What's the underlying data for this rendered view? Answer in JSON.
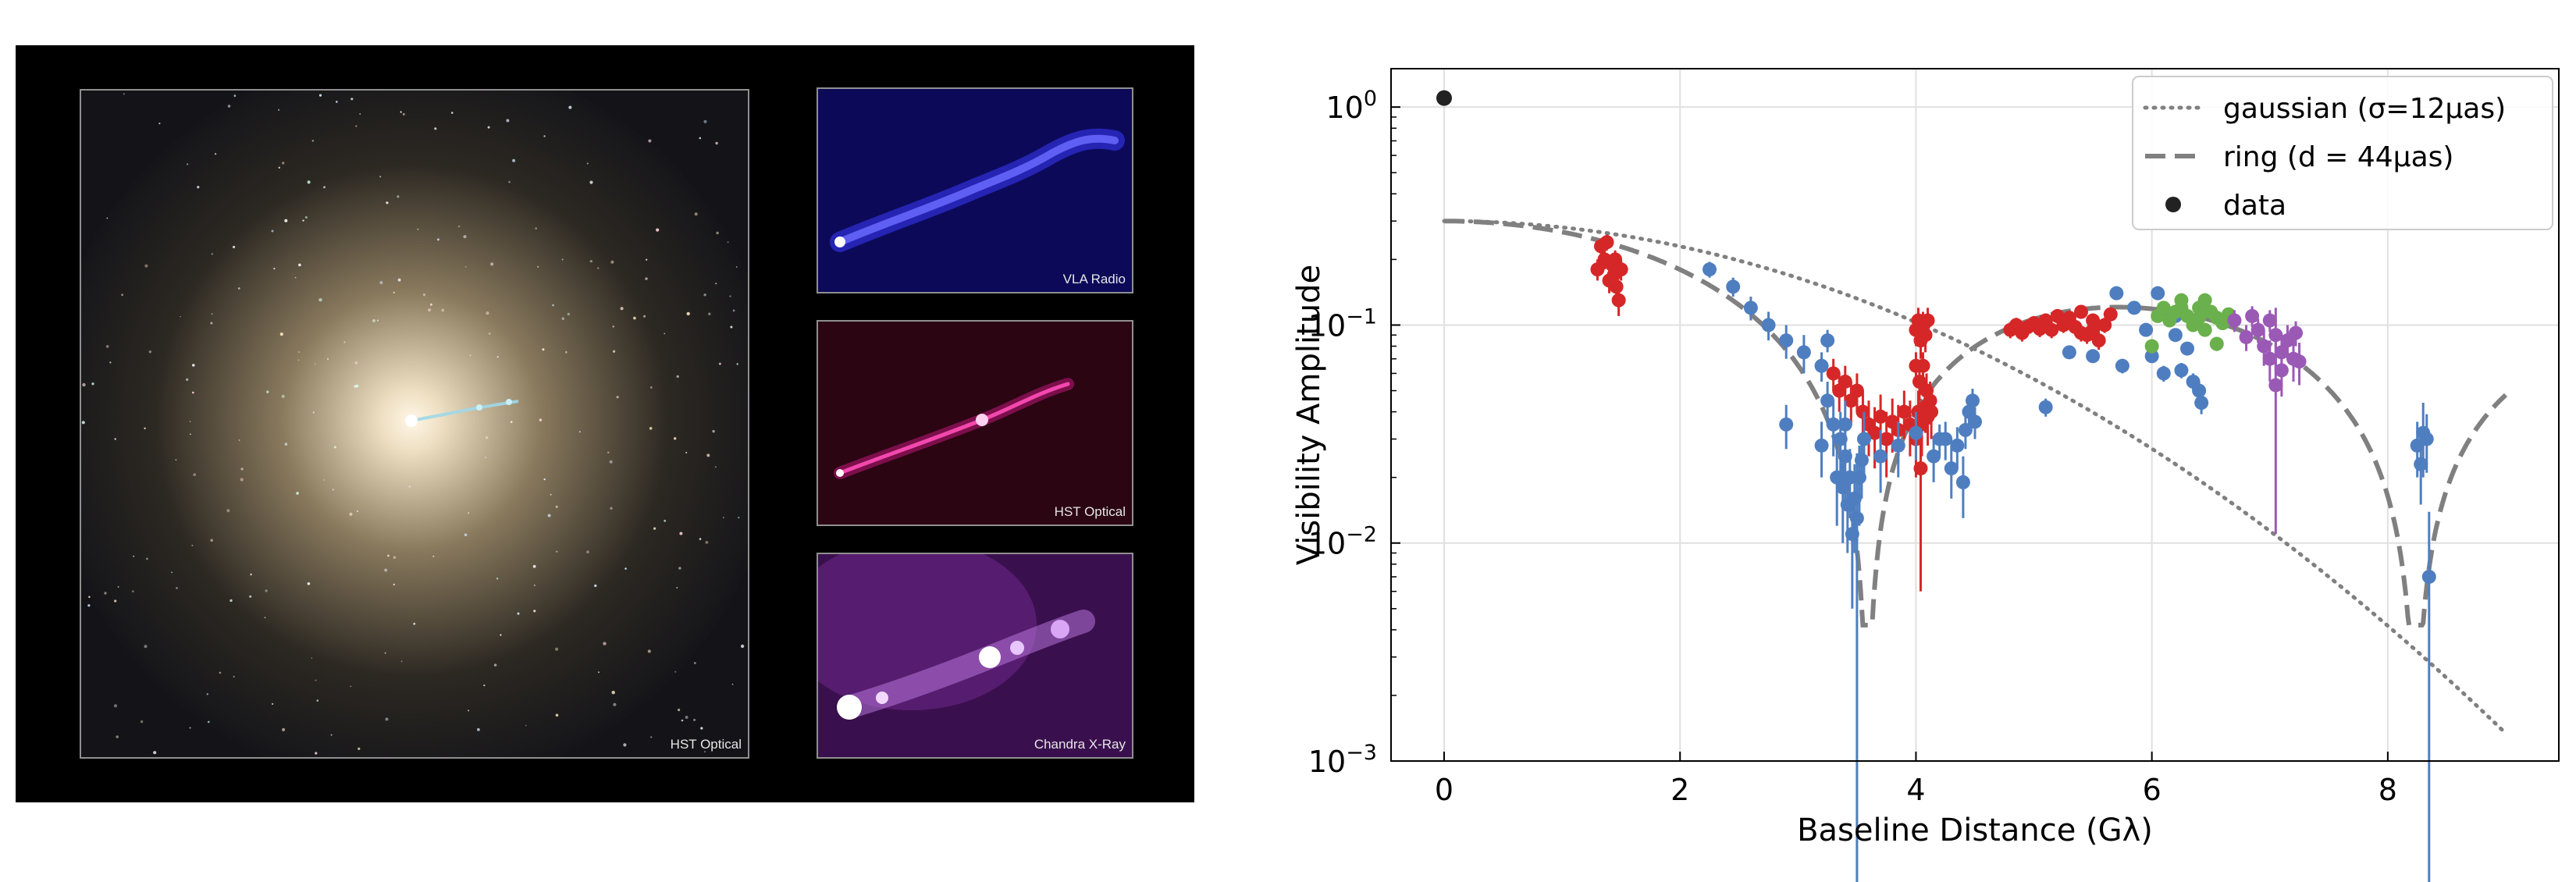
{
  "images": {
    "main_label": "HST Optical",
    "radio_label": "VLA Radio",
    "optical_label": "HST Optical",
    "xray_label": "Chandra X-Ray"
  },
  "chart_data": {
    "type": "scatter",
    "xlabel": "Baseline Distance (Gλ)",
    "ylabel": "Visibility Amplitude",
    "xlim": [
      -0.45,
      9.45
    ],
    "ylim": [
      0.001,
      1.5
    ],
    "yscale": "log",
    "grid": true,
    "legend_position": "top-right",
    "xticks": [
      0,
      2,
      4,
      6,
      8
    ],
    "yticks": [
      {
        "value": 1,
        "base": "10",
        "exp": "0"
      },
      {
        "value": 0.1,
        "base": "10",
        "exp": "−1"
      },
      {
        "value": 0.01,
        "base": "10",
        "exp": "−2"
      },
      {
        "value": 0.001,
        "base": "10",
        "exp": "−3"
      }
    ],
    "legend": [
      {
        "label": "gaussian (σ=12μas)",
        "style": "dotted"
      },
      {
        "label": "ring (d = 44μas)",
        "style": "dashed"
      },
      {
        "label": "data",
        "style": "marker"
      }
    ],
    "models": {
      "gaussian": {
        "amp0": 0.3,
        "sigma_uas": 12,
        "color": "#808080"
      },
      "ring": {
        "amp0": 0.3,
        "d_uas": 44,
        "color": "#808080"
      }
    },
    "zero_point": {
      "x": 0.0,
      "y": 1.1,
      "color": "#222222"
    },
    "point_sets": [
      {
        "color": "#d62728",
        "points": [
          [
            1.3,
            0.18,
            0.02
          ],
          [
            1.33,
            0.23,
            0.02
          ],
          [
            1.36,
            0.2,
            0.02
          ],
          [
            1.38,
            0.24,
            0.02
          ],
          [
            1.4,
            0.16,
            0.02
          ],
          [
            1.42,
            0.19,
            0.02
          ],
          [
            1.44,
            0.17,
            0.02
          ],
          [
            1.46,
            0.15,
            0.02
          ],
          [
            1.48,
            0.13,
            0.02
          ],
          [
            1.5,
            0.18,
            0.02
          ],
          [
            1.45,
            0.2,
            0.02
          ],
          [
            3.3,
            0.06,
            0.01
          ],
          [
            3.35,
            0.05,
            0.01
          ],
          [
            3.4,
            0.055,
            0.01
          ],
          [
            3.45,
            0.045,
            0.01
          ],
          [
            3.5,
            0.05,
            0.01
          ],
          [
            3.55,
            0.04,
            0.01
          ],
          [
            3.6,
            0.035,
            0.01
          ],
          [
            3.65,
            0.032,
            0.01
          ],
          [
            3.7,
            0.038,
            0.01
          ],
          [
            3.75,
            0.03,
            0.01
          ],
          [
            3.8,
            0.036,
            0.01
          ],
          [
            3.85,
            0.033,
            0.01
          ],
          [
            3.9,
            0.04,
            0.01
          ],
          [
            3.95,
            0.035,
            0.01
          ],
          [
            4.0,
            0.095,
            0.015
          ],
          [
            4.02,
            0.105,
            0.015
          ],
          [
            4.04,
            0.085,
            0.015
          ],
          [
            4.06,
            0.1,
            0.015
          ],
          [
            4.08,
            0.09,
            0.015
          ],
          [
            4.1,
            0.105,
            0.015
          ],
          [
            4.0,
            0.065,
            0.01
          ],
          [
            4.03,
            0.055,
            0.01
          ],
          [
            4.06,
            0.065,
            0.01
          ],
          [
            4.09,
            0.05,
            0.01
          ],
          [
            4.12,
            0.045,
            0.01
          ],
          [
            4.02,
            0.04,
            0.01
          ],
          [
            4.05,
            0.035,
            0.01
          ],
          [
            4.08,
            0.042,
            0.01
          ],
          [
            4.0,
            0.03,
            0.01
          ],
          [
            4.04,
            0.022,
            0.016
          ],
          [
            4.1,
            0.038,
            0.01
          ],
          [
            4.13,
            0.04,
            0.01
          ],
          [
            4.8,
            0.095,
            0.008
          ],
          [
            4.85,
            0.1,
            0.008
          ],
          [
            4.9,
            0.092,
            0.008
          ],
          [
            4.95,
            0.098,
            0.008
          ],
          [
            5.0,
            0.102,
            0.008
          ],
          [
            5.05,
            0.096,
            0.008
          ],
          [
            5.1,
            0.105,
            0.008
          ],
          [
            5.15,
            0.095,
            0.008
          ],
          [
            5.2,
            0.11,
            0.008
          ],
          [
            5.25,
            0.1,
            0.008
          ],
          [
            5.3,
            0.108,
            0.008
          ],
          [
            5.35,
            0.098,
            0.008
          ],
          [
            5.4,
            0.115,
            0.008
          ],
          [
            5.45,
            0.09,
            0.008
          ],
          [
            5.5,
            0.105,
            0.008
          ],
          [
            5.55,
            0.085,
            0.008
          ],
          [
            5.6,
            0.1,
            0.008
          ],
          [
            5.65,
            0.112,
            0.008
          ],
          [
            5.4,
            0.092,
            0.008
          ],
          [
            5.5,
            0.095,
            0.008
          ]
        ]
      },
      {
        "color": "#4f7ec0",
        "points": [
          [
            2.25,
            0.18,
            0.015
          ],
          [
            2.45,
            0.15,
            0.015
          ],
          [
            2.6,
            0.12,
            0.015
          ],
          [
            2.75,
            0.1,
            0.015
          ],
          [
            2.9,
            0.085,
            0.015
          ],
          [
            3.05,
            0.075,
            0.015
          ],
          [
            3.2,
            0.065,
            0.01
          ],
          [
            3.25,
            0.085,
            0.01
          ],
          [
            2.9,
            0.035,
            0.008
          ],
          [
            3.2,
            0.028,
            0.008
          ],
          [
            3.25,
            0.045,
            0.01
          ],
          [
            3.3,
            0.035,
            0.01
          ],
          [
            3.33,
            0.02,
            0.008
          ],
          [
            3.36,
            0.03,
            0.01
          ],
          [
            3.38,
            0.018,
            0.008
          ],
          [
            3.4,
            0.025,
            0.01
          ],
          [
            3.42,
            0.015,
            0.006
          ],
          [
            3.44,
            0.02,
            0.007
          ],
          [
            3.46,
            0.011,
            0.006
          ],
          [
            3.48,
            0.016,
            0.007
          ],
          [
            3.5,
            0.013,
            0.0128
          ],
          [
            3.52,
            0.02,
            0.008
          ],
          [
            3.54,
            0.024,
            0.008
          ],
          [
            3.56,
            0.03,
            0.01
          ],
          [
            3.4,
            0.035,
            0.01
          ],
          [
            3.7,
            0.025,
            0.008
          ],
          [
            3.85,
            0.028,
            0.008
          ],
          [
            4.0,
            0.032,
            0.008
          ],
          [
            4.15,
            0.025,
            0.006
          ],
          [
            4.25,
            0.03,
            0.006
          ],
          [
            4.3,
            0.022,
            0.006
          ],
          [
            4.35,
            0.028,
            0.006
          ],
          [
            4.4,
            0.019,
            0.006
          ],
          [
            4.42,
            0.033,
            0.006
          ],
          [
            4.45,
            0.04,
            0.006
          ],
          [
            4.48,
            0.045,
            0.006
          ],
          [
            4.5,
            0.036,
            0.006
          ],
          [
            4.2,
            0.03,
            0.005
          ],
          [
            5.1,
            0.042,
            0.004
          ],
          [
            5.3,
            0.075,
            0.005
          ],
          [
            5.5,
            0.072,
            0.005
          ],
          [
            5.7,
            0.14,
            0.006
          ],
          [
            5.75,
            0.065,
            0.005
          ],
          [
            5.85,
            0.12,
            0.006
          ],
          [
            5.95,
            0.095,
            0.006
          ],
          [
            6.0,
            0.072,
            0.005
          ],
          [
            6.05,
            0.14,
            0.006
          ],
          [
            6.1,
            0.06,
            0.005
          ],
          [
            6.15,
            0.108,
            0.006
          ],
          [
            6.2,
            0.09,
            0.006
          ],
          [
            6.25,
            0.062,
            0.005
          ],
          [
            6.3,
            0.078,
            0.005
          ],
          [
            6.35,
            0.055,
            0.005
          ],
          [
            6.4,
            0.05,
            0.005
          ],
          [
            6.42,
            0.044,
            0.005
          ],
          [
            6.2,
            0.11,
            0.006
          ],
          [
            8.25,
            0.028,
            0.008
          ],
          [
            8.28,
            0.023,
            0.008
          ],
          [
            8.3,
            0.032,
            0.012
          ],
          [
            8.33,
            0.03,
            0.009
          ],
          [
            8.35,
            0.007,
            0.0069
          ]
        ]
      },
      {
        "color": "#6ab04c",
        "points": [
          [
            6.0,
            0.08,
            0.006
          ],
          [
            6.05,
            0.11,
            0.006
          ],
          [
            6.1,
            0.12,
            0.006
          ],
          [
            6.15,
            0.105,
            0.006
          ],
          [
            6.2,
            0.115,
            0.006
          ],
          [
            6.25,
            0.12,
            0.006
          ],
          [
            6.3,
            0.11,
            0.006
          ],
          [
            6.35,
            0.1,
            0.006
          ],
          [
            6.4,
            0.12,
            0.006
          ],
          [
            6.45,
            0.13,
            0.006
          ],
          [
            6.5,
            0.115,
            0.006
          ],
          [
            6.55,
            0.108,
            0.006
          ],
          [
            6.6,
            0.102,
            0.006
          ],
          [
            6.65,
            0.112,
            0.006
          ],
          [
            6.25,
            0.13,
            0.006
          ],
          [
            6.45,
            0.095,
            0.006
          ],
          [
            6.55,
            0.082,
            0.006
          ],
          [
            6.4,
            0.108,
            0.006
          ]
        ]
      },
      {
        "color": "#9b59b6",
        "points": [
          [
            6.7,
            0.105,
            0.012
          ],
          [
            6.8,
            0.088,
            0.012
          ],
          [
            6.85,
            0.11,
            0.012
          ],
          [
            6.9,
            0.095,
            0.012
          ],
          [
            6.95,
            0.08,
            0.015
          ],
          [
            7.0,
            0.07,
            0.015
          ],
          [
            7.0,
            0.105,
            0.012
          ],
          [
            7.05,
            0.09,
            0.03
          ],
          [
            7.05,
            0.053,
            0.042
          ],
          [
            7.1,
            0.075,
            0.015
          ],
          [
            7.15,
            0.085,
            0.015
          ],
          [
            7.2,
            0.07,
            0.015
          ],
          [
            7.22,
            0.092,
            0.012
          ],
          [
            7.25,
            0.068,
            0.015
          ],
          [
            7.1,
            0.062,
            0.015
          ]
        ]
      }
    ]
  }
}
